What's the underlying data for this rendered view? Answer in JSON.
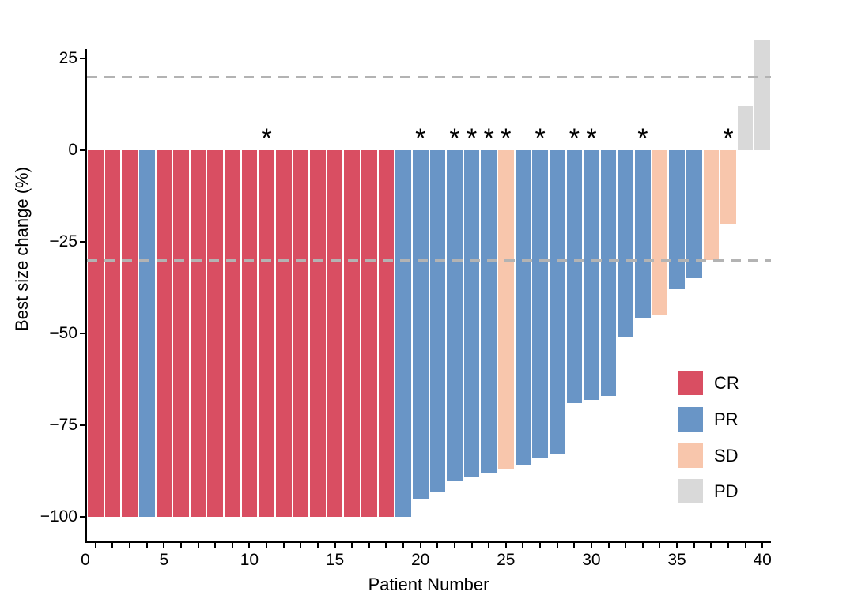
{
  "figure": {
    "xlabel": "Patient Number",
    "ylabel": "Best size change (%)"
  },
  "chart_data": {
    "type": "bar",
    "title": "",
    "xlabel": "Patient Number",
    "ylabel": "Best size change (%)",
    "x_tick_labels": [
      0,
      5,
      10,
      15,
      20,
      25,
      30,
      35,
      40
    ],
    "y_tick_labels": [
      "25",
      "0",
      "−25",
      "−50",
      "−75",
      "−100"
    ],
    "y_tick_values": [
      25,
      0,
      -25,
      -50,
      -75,
      -100
    ],
    "ylim": [
      -103,
      33
    ],
    "grid": false,
    "legend_position": "inside-right",
    "significance_marker": "*",
    "reference_lines": [
      {
        "name": "upper-threshold",
        "value": 20,
        "style": "dashed",
        "color": "#b3b3b3"
      },
      {
        "name": "lower-threshold",
        "value": -30,
        "style": "dashed",
        "color": "#b3b3b3"
      }
    ],
    "legend": [
      {
        "label": "CR",
        "color": "#d94e62"
      },
      {
        "label": "PR",
        "color": "#6995c6"
      },
      {
        "label": "SD",
        "color": "#f8c6ac"
      },
      {
        "label": "PD",
        "color": "#d9d9d9"
      }
    ],
    "bars": [
      {
        "patient": 1,
        "value": -100,
        "response": "CR",
        "asterisk": false
      },
      {
        "patient": 2,
        "value": -100,
        "response": "CR",
        "asterisk": false
      },
      {
        "patient": 3,
        "value": -100,
        "response": "CR",
        "asterisk": false
      },
      {
        "patient": 4,
        "value": -100,
        "response": "PR",
        "asterisk": false
      },
      {
        "patient": 5,
        "value": -100,
        "response": "CR",
        "asterisk": false
      },
      {
        "patient": 6,
        "value": -100,
        "response": "CR",
        "asterisk": false
      },
      {
        "patient": 7,
        "value": -100,
        "response": "CR",
        "asterisk": false
      },
      {
        "patient": 8,
        "value": -100,
        "response": "CR",
        "asterisk": false
      },
      {
        "patient": 9,
        "value": -100,
        "response": "CR",
        "asterisk": false
      },
      {
        "patient": 10,
        "value": -100,
        "response": "CR",
        "asterisk": false
      },
      {
        "patient": 11,
        "value": -100,
        "response": "CR",
        "asterisk": true
      },
      {
        "patient": 12,
        "value": -100,
        "response": "CR",
        "asterisk": false
      },
      {
        "patient": 13,
        "value": -100,
        "response": "CR",
        "asterisk": false
      },
      {
        "patient": 14,
        "value": -100,
        "response": "CR",
        "asterisk": false
      },
      {
        "patient": 15,
        "value": -100,
        "response": "CR",
        "asterisk": false
      },
      {
        "patient": 16,
        "value": -100,
        "response": "CR",
        "asterisk": false
      },
      {
        "patient": 17,
        "value": -100,
        "response": "CR",
        "asterisk": false
      },
      {
        "patient": 18,
        "value": -100,
        "response": "CR",
        "asterisk": false
      },
      {
        "patient": 19,
        "value": -100,
        "response": "PR",
        "asterisk": false
      },
      {
        "patient": 20,
        "value": -95,
        "response": "PR",
        "asterisk": true
      },
      {
        "patient": 21,
        "value": -93,
        "response": "PR",
        "asterisk": false
      },
      {
        "patient": 22,
        "value": -90,
        "response": "PR",
        "asterisk": true
      },
      {
        "patient": 23,
        "value": -89,
        "response": "PR",
        "asterisk": true
      },
      {
        "patient": 24,
        "value": -88,
        "response": "PR",
        "asterisk": true
      },
      {
        "patient": 25,
        "value": -87,
        "response": "SD",
        "asterisk": true
      },
      {
        "patient": 26,
        "value": -86,
        "response": "PR",
        "asterisk": false
      },
      {
        "patient": 27,
        "value": -84,
        "response": "PR",
        "asterisk": true
      },
      {
        "patient": 28,
        "value": -83,
        "response": "PR",
        "asterisk": false
      },
      {
        "patient": 29,
        "value": -69,
        "response": "PR",
        "asterisk": true
      },
      {
        "patient": 30,
        "value": -68,
        "response": "PR",
        "asterisk": true
      },
      {
        "patient": 31,
        "value": -67,
        "response": "PR",
        "asterisk": false
      },
      {
        "patient": 32,
        "value": -51,
        "response": "PR",
        "asterisk": false
      },
      {
        "patient": 33,
        "value": -46,
        "response": "PR",
        "asterisk": true
      },
      {
        "patient": 34,
        "value": -45,
        "response": "SD",
        "asterisk": false
      },
      {
        "patient": 35,
        "value": -38,
        "response": "PR",
        "asterisk": false
      },
      {
        "patient": 36,
        "value": -35,
        "response": "PR",
        "asterisk": false
      },
      {
        "patient": 37,
        "value": -30,
        "response": "SD",
        "asterisk": false
      },
      {
        "patient": 38,
        "value": -20,
        "response": "SD",
        "asterisk": true
      },
      {
        "patient": 39,
        "value": 12,
        "response": "PD",
        "asterisk": false
      },
      {
        "patient": 40,
        "value": 30,
        "response": "PD",
        "asterisk": false
      }
    ]
  }
}
